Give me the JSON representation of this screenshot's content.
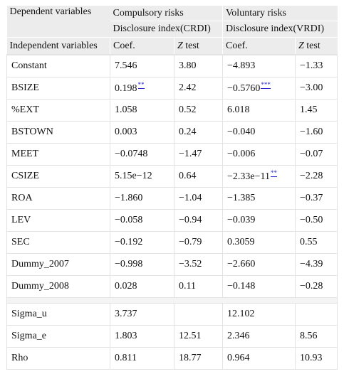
{
  "header": {
    "dependent_label": "Dependent variables",
    "independent_label": "Independent variables",
    "crdi_title": "Compulsory risks",
    "crdi_subtitle": "Disclosure index(CRDI)",
    "vrdi_title": "Voluntary risks",
    "vrdi_subtitle": "Disclosure index(VRDI)",
    "coef_label": "Coef.",
    "z_italic": "Z",
    "z_rest": " test"
  },
  "rows": [
    {
      "name": "Constant",
      "c_coef": "7.546",
      "c_sig": "",
      "c_z": "3.80",
      "v_coef": "−4.893",
      "v_sig": "",
      "v_z": "−1.33"
    },
    {
      "name": "BSIZE",
      "c_coef": "0.198",
      "c_sig": "**",
      "c_z": "2.42",
      "v_coef": "−0.5760",
      "v_sig": "***",
      "v_z": "−3.00"
    },
    {
      "name": "%EXT",
      "c_coef": "1.058",
      "c_sig": "",
      "c_z": "0.52",
      "v_coef": "6.018",
      "v_sig": "",
      "v_z": "1.45"
    },
    {
      "name": "BSTOWN",
      "c_coef": "0.003",
      "c_sig": "",
      "c_z": "0.24",
      "v_coef": "−0.040",
      "v_sig": "",
      "v_z": "−1.60"
    },
    {
      "name": "MEET",
      "c_coef": "−0.0748",
      "c_sig": "",
      "c_z": "−1.47",
      "v_coef": "−0.006",
      "v_sig": "",
      "v_z": "−0.07"
    },
    {
      "name": "CSIZE",
      "c_coef": "5.15e−12",
      "c_sig": "",
      "c_z": "0.64",
      "v_coef": "−2.33e−11",
      "v_sig": "**",
      "v_z": "−2.28"
    },
    {
      "name": "ROA",
      "c_coef": "−1.860",
      "c_sig": "",
      "c_z": "−1.04",
      "v_coef": "−1.385",
      "v_sig": "",
      "v_z": "−0.37"
    },
    {
      "name": "LEV",
      "c_coef": "−0.058",
      "c_sig": "",
      "c_z": "−0.94",
      "v_coef": "−0.039",
      "v_sig": "",
      "v_z": "−0.50"
    },
    {
      "name": "SEC",
      "c_coef": "−0.192",
      "c_sig": "",
      "c_z": "−0.79",
      "v_coef": "0.3059",
      "v_sig": "",
      "v_z": "0.55"
    },
    {
      "name": "Dummy_2007",
      "c_coef": "−0.998",
      "c_sig": "",
      "c_z": "−3.52",
      "v_coef": "−2.660",
      "v_sig": "",
      "v_z": "−4.39"
    },
    {
      "name": "Dummy_2008",
      "c_coef": "0.028",
      "c_sig": "",
      "c_z": "0.11",
      "v_coef": "−0.148",
      "v_sig": "",
      "v_z": "−0.28"
    }
  ],
  "stats": [
    {
      "name": "Sigma_u",
      "c_coef": "3.737",
      "c_z": "",
      "v_coef": "12.102",
      "v_z": ""
    },
    {
      "name": "Sigma_e",
      "c_coef": "1.803",
      "c_z": "12.51",
      "v_coef": "2.346",
      "v_z": "8.56"
    },
    {
      "name": "Rho",
      "c_coef": "0.811",
      "c_z": "18.77",
      "v_coef": "0.964",
      "v_z": "10.93"
    }
  ],
  "colors": {
    "header_bg": "#ececec",
    "grid": "#e3e3e3",
    "significance_link": "#2222cc"
  }
}
